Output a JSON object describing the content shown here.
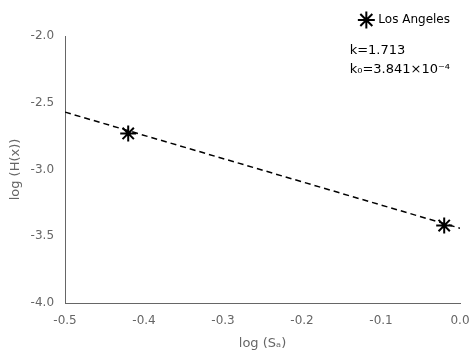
{
  "chart_data": {
    "type": "scatter",
    "xlabel": "log (Sₐ)",
    "ylabel": "log (H(x))",
    "xlim": [
      -0.5,
      0.0
    ],
    "ylim": [
      -4.0,
      -2.0
    ],
    "xticks": [
      -0.5,
      -0.4,
      -0.3,
      -0.2,
      -0.1,
      {
        "value": 0,
        "label": "0.0"
      }
    ],
    "yticks": [
      {
        "value": -4,
        "label": "-4.0"
      },
      -3.5,
      {
        "value": -3,
        "label": "-3.0"
      },
      -2.5,
      {
        "value": -2,
        "label": "-2.0"
      }
    ],
    "grid": false,
    "legend": "upper right",
    "annotations": [
      {
        "text": "k=1.713"
      },
      {
        "text": "k₀=3.841×10⁻⁴"
      }
    ],
    "series": [
      {
        "type": "line",
        "line_style": "dashed",
        "color": "#000000",
        "x": [
          -0.5,
          0.0
        ],
        "values": [
          -2.57,
          -3.44
        ]
      },
      {
        "name": "Los Angeles",
        "type": "scatter",
        "marker": "star",
        "color": "#000000",
        "x": [
          -0.42,
          -0.02
        ],
        "values": [
          -2.73,
          -3.42
        ]
      }
    ]
  }
}
